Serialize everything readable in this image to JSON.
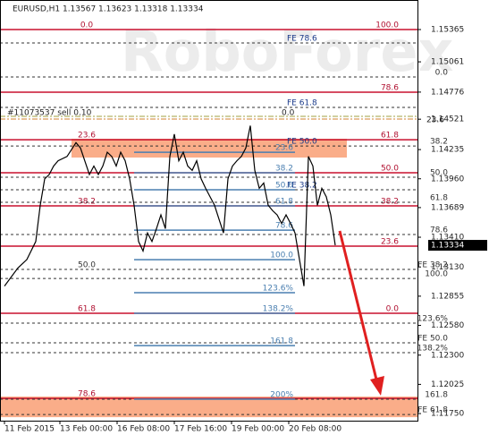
{
  "chart_data": {
    "type": "line",
    "title": "EURUSD,H1  1.13567 1.13623 1.13318 1.13334",
    "watermark": "RoboForex",
    "color": "#000000",
    "x": [
      0,
      7.5,
      12.5,
      17.5,
      20,
      22.5,
      25,
      27.5,
      30,
      35,
      40,
      42.5,
      47.5,
      50,
      52.5,
      55,
      57.5,
      60,
      62.5,
      65,
      67.5,
      70,
      72.5,
      75,
      77.5,
      80,
      82.5,
      85,
      87.5,
      90,
      92.5,
      95,
      97.5,
      100,
      102.5,
      105,
      107.5,
      110,
      112.5,
      115,
      117.5,
      120,
      122.5,
      125,
      127.5,
      130,
      132.5,
      135,
      137.5,
      140,
      142.5,
      145,
      147.5,
      150,
      152.5,
      155,
      157.5,
      160,
      162.5,
      165,
      167.5,
      170,
      172.5,
      175,
      177.5,
      180,
      182.5,
      185
    ],
    "values": [
      1.1295,
      1.1312,
      1.132,
      1.1337,
      1.1371,
      1.1396,
      1.14,
      1.1408,
      1.1413,
      1.1417,
      1.143,
      1.1425,
      1.14,
      1.1408,
      1.14,
      1.1408,
      1.1421,
      1.1417,
      1.1408,
      1.1421,
      1.1413,
      1.1396,
      1.1371,
      1.1337,
      1.1328,
      1.1345,
      1.1337,
      1.1349,
      1.1362,
      1.1349,
      1.1417,
      1.1438,
      1.1413,
      1.1421,
      1.1408,
      1.1404,
      1.1413,
      1.1396,
      1.1387,
      1.1379,
      1.1371,
      1.1358,
      1.1345,
      1.1396,
      1.1408,
      1.1413,
      1.1417,
      1.1425,
      1.1446,
      1.1404,
      1.1387,
      1.1392,
      1.1371,
      1.1366,
      1.1362,
      1.1354,
      1.1362,
      1.1354,
      1.1345,
      1.132,
      1.1295,
      1.1417,
      1.1408,
      1.1371,
      1.1387,
      1.1379,
      1.1362,
      1.13334
    ],
    "current_price": 1.13334,
    "xlim": [
      -2.5,
      231
    ],
    "xticks": [
      {
        "value": 0,
        "label": "11 Feb 2015"
      },
      {
        "value": 31,
        "label": "13 Feb 00:00"
      },
      {
        "value": 63,
        "label": "16 Feb 08:00"
      },
      {
        "value": 95,
        "label": "17 Feb 16:00"
      },
      {
        "value": 127,
        "label": "19 Feb 00:00"
      },
      {
        "value": 159,
        "label": "20 Feb 08:00"
      }
    ],
    "ylim": [
      1.11683,
      1.15643
    ],
    "yticks": [
      1.15365,
      1.15061,
      1.14776,
      1.14521,
      1.14235,
      {
        "value": 1.1396,
        "label": "1.13960"
      },
      1.13689,
      {
        "value": 1.1341,
        "label": "1.13410"
      },
      {
        "value": 1.1313,
        "label": "1.13130"
      },
      1.12855,
      {
        "value": 1.1258,
        "label": "1.12580"
      },
      {
        "value": 1.123,
        "label": "1.12300"
      },
      1.12025,
      {
        "value": 1.1175,
        "label": "1.11750"
      }
    ],
    "zones": [
      {
        "from": 1.14337,
        "to": 1.1416,
        "x_from": 37.5,
        "x_to": 191.5,
        "color": "#f9a47c"
      },
      {
        "from": 1.1191,
        "to": 1.11716,
        "color": "#f9a47c"
      }
    ],
    "trade_line": {
      "price": 1.14548,
      "label": "#11073537 sell 0.10",
      "mid_label": "0.0",
      "right_label": "23.6",
      "color": "#a0a040"
    },
    "levels": [
      {
        "style": "solid",
        "color": "#c8102e",
        "items": [
          {
            "price": 1.15365,
            "left_label": "0.0",
            "right_label": "100.0"
          },
          {
            "price": 1.14775,
            "right_label": "78.6"
          },
          {
            "price": 1.14328,
            "left_label": "23.6",
            "right_label": "61.8"
          },
          {
            "price": 1.14017,
            "right_label": "50.0"
          },
          {
            "price": 1.13705,
            "left_label": "38.2",
            "right_label": "38.2"
          },
          {
            "price": 1.13326,
            "right_label": "23.6"
          },
          {
            "price": 1.12694,
            "left_label": "61.8",
            "right_label": "0.0"
          },
          {
            "price": 1.11893,
            "left_label": "78.6"
          }
        ]
      },
      {
        "style": "dashed",
        "color": "#333333",
        "items": [
          {
            "price": 1.15239,
            "mid_label": "FE 78.6"
          },
          {
            "price": 1.14918,
            "right_label": "0.0"
          },
          {
            "price": 1.14632,
            "mid_label": "FE 61.8"
          },
          {
            "price": 1.14269,
            "mid_label": "FE 50.0",
            "right_label": "38.2"
          },
          {
            "price": 1.13975,
            "right_label": "50.0"
          },
          {
            "price": 1.13857,
            "mid_label": "FE 38.2"
          },
          {
            "price": 1.13739,
            "right_label": "61.8"
          },
          {
            "price": 1.13435,
            "right_label": "78.6"
          },
          {
            "price": 1.13107,
            "left_label": "50.0",
            "right_label": "FE 38.2"
          },
          {
            "price": 1.13022,
            "right_label": "100.0"
          },
          {
            "price": 1.12601,
            "right_label": "123.6%"
          },
          {
            "price": 1.12416,
            "right_label": "FE 50.0"
          },
          {
            "price": 1.12323,
            "right_label": "138.2%"
          },
          {
            "price": 1.11885,
            "right_label": "161.8"
          },
          {
            "price": 1.11741,
            "right_label": "FE 61.8"
          }
        ]
      },
      {
        "style": "blue",
        "color": "#4a7fb0",
        "x_from": 72.5,
        "x_to": 162.5,
        "items": [
          {
            "price": 1.1421,
            "label": "23.6"
          },
          {
            "price": 1.14017,
            "label": "38.2"
          },
          {
            "price": 1.13857,
            "label": "50.0"
          },
          {
            "price": 1.13705,
            "label": "61.8"
          },
          {
            "price": 1.13477,
            "label": "78.6"
          },
          {
            "price": 1.13199,
            "label": "100.0"
          },
          {
            "price": 1.12888,
            "label": "123.6%"
          },
          {
            "price": 1.12694,
            "label": "138.2%"
          },
          {
            "price": 1.1239,
            "label": "161.8"
          },
          {
            "price": 1.11885,
            "label": "200%"
          }
        ]
      }
    ]
  }
}
